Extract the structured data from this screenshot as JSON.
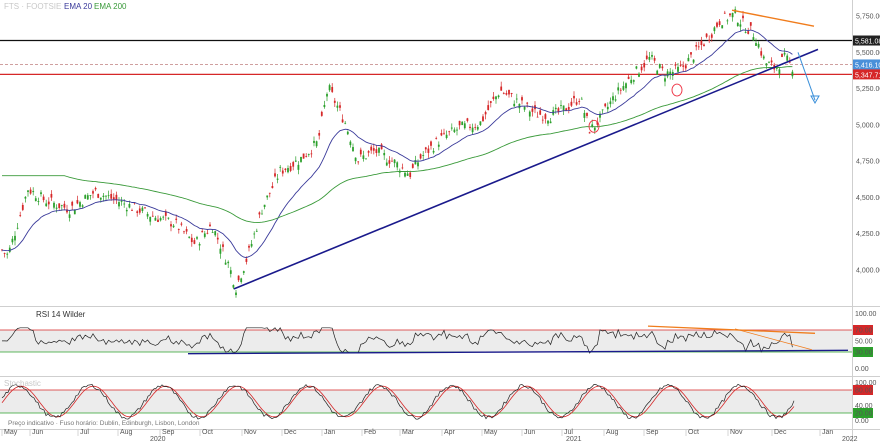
{
  "legend": {
    "instrument": "FTS · FOOTSIE",
    "ema20_label": "EMA 20",
    "ema200_label": "EMA 200",
    "rsi_label": "RSI 14 Wilder",
    "stoch_label": "Stochastic",
    "footer_note": "Preço indicativo · Fuso horário: Dublin, Edinburgh, Lisbon, London"
  },
  "colors": {
    "up": "#2ca02c",
    "down": "#d62728",
    "ema20": "#3a3a9a",
    "ema200": "#3a9a3a",
    "trendline": "#1a1a8c",
    "orange": "#f07c1c",
    "black_level": "#111111",
    "red_level": "#d62728",
    "dashed_level": "#c08080",
    "projection": "#3a8fd9"
  },
  "chart_data": [
    {
      "type": "line",
      "panel": "price",
      "x_labels": [
        "May",
        "Jun",
        "Jul",
        "Aug",
        "Sep",
        "Oct",
        "Nov",
        "Dec",
        "Jan",
        "Feb",
        "Mar",
        "Apr",
        "May",
        "Jun",
        "Jul",
        "Aug",
        "Sep",
        "Oct",
        "Nov",
        "Dec",
        "Jan"
      ],
      "year_labels": [
        "2020",
        "2021",
        "2022"
      ],
      "y_ticks": [
        "5,750.00",
        "5,500.00",
        "5,250.00",
        "5,000.00",
        "4,750.00",
        "4,500.00",
        "4,250.00",
        "4,000.00"
      ],
      "ylim": [
        3800,
        5820
      ],
      "series": [
        {
          "name": "EMA 20"
        },
        {
          "name": "EMA 200"
        }
      ],
      "levels": [
        {
          "label": "5,581.08",
          "value": 5581.08,
          "style": "black"
        },
        {
          "label": "5,416.10",
          "value": 5416.1,
          "style": "dashed"
        },
        {
          "label": "5,347.71",
          "value": 5347.71,
          "style": "red"
        }
      ]
    },
    {
      "type": "line",
      "panel": "rsi",
      "title": "RSI 14 Wilder",
      "y_ticks": [
        "100.00",
        "70.00",
        "50.00",
        "30.00",
        "0.00"
      ],
      "ylim": [
        0,
        100
      ],
      "levels": [
        70,
        30
      ]
    },
    {
      "type": "line",
      "panel": "stochastic",
      "y_ticks": [
        "100.00",
        "80.00",
        "40.00",
        "20.00",
        "0.00"
      ],
      "ylim": [
        0,
        100
      ],
      "levels": [
        80,
        20
      ]
    }
  ]
}
